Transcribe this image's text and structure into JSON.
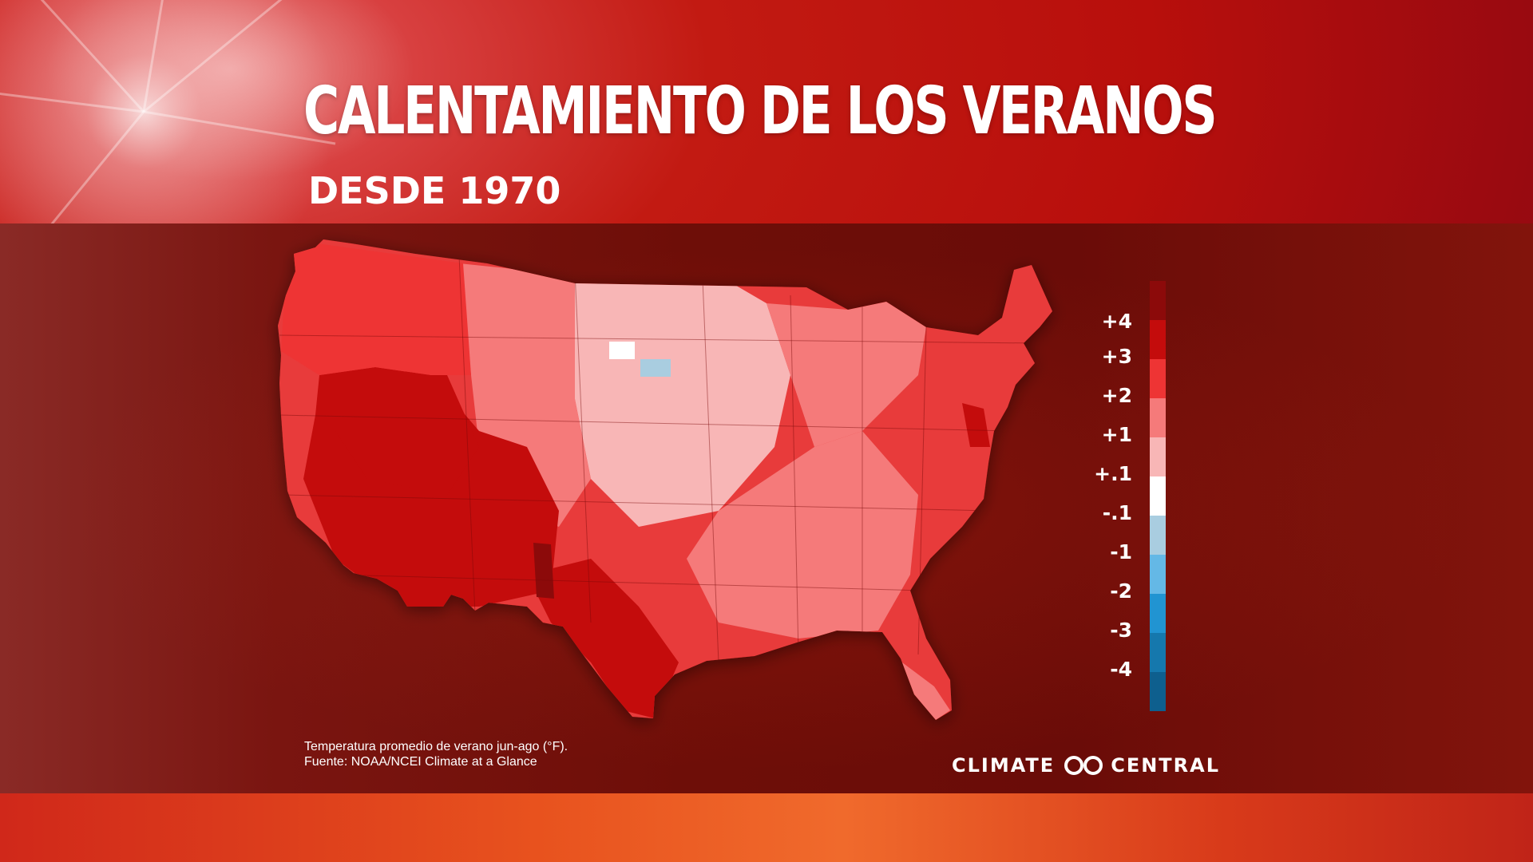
{
  "header": {
    "title": "CALENTAMIENTO DE LOS VERANOS",
    "subtitle": "DESDE 1970"
  },
  "map": {
    "region": "contiguous United States",
    "unit": "°F",
    "style": "choropleth",
    "dominant_pattern": "warming nearly everywhere; strongest (+3 to +4) in the Southwest, Texas, Florida and mid-Atlantic coast; weakest (+.1 to +1) in the northern Great Plains; one small area between -.1 and -1 in South Dakota"
  },
  "legend": {
    "labels": [
      "+4",
      "+3",
      "+2",
      "+1",
      "+.1",
      "-.1",
      "-1",
      "-2",
      "-3",
      "-4"
    ],
    "colors": [
      "#8c0a0a",
      "#c40c0c",
      "#ee3434",
      "#f57a7a",
      "#f8b6b6",
      "#ffffff",
      "#a9cde0",
      "#64b8e6",
      "#2194d2",
      "#1578ad",
      "#0e5f8e"
    ]
  },
  "footnote": {
    "line1": "Temperatura promedio de verano jun-ago (°F).",
    "line2": "Fuente: NOAA/NCEI Climate at a Glance"
  },
  "logo": {
    "left_text": "CLIMATE",
    "right_text": "CENTRAL"
  }
}
